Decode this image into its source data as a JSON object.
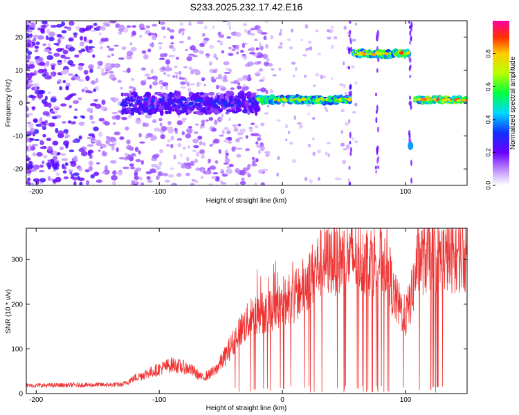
{
  "title": "S233.2025.232.17.42.E16",
  "chart_data": [
    {
      "type": "heatmap",
      "name": "spectrogram",
      "xlabel": "Height of straight line (km)",
      "ylabel": "Frequency (Hz)",
      "xlim": [
        -208,
        150
      ],
      "ylim": [
        -25,
        25
      ],
      "xticks": [
        -200,
        -100,
        0,
        100
      ],
      "yticks": [
        -20,
        -10,
        0,
        10,
        20
      ],
      "signal_tracks": [
        {
          "x_start": -130,
          "x_end": -20,
          "freq": 0,
          "spread": 6,
          "peak_amp": 0.35
        },
        {
          "x_start": -20,
          "x_end": 55,
          "freq": 1,
          "spread": 1.5,
          "peak_amp": 0.8
        },
        {
          "x_start": 58,
          "x_end": 103,
          "freq": 15,
          "spread": 1.5,
          "peak_amp": 0.9
        },
        {
          "x_start": 108,
          "x_end": 150,
          "freq": 1,
          "spread": 1.2,
          "peak_amp": 0.95
        }
      ],
      "colorbar": {
        "label": "Normalized spectral amplitude",
        "range": [
          0,
          1
        ],
        "ticks": [
          "0.0",
          "0.2",
          "0.4",
          "0.6",
          "0.8"
        ]
      }
    },
    {
      "type": "line",
      "name": "snr",
      "xlabel": "Height of straight line (km)",
      "ylabel": "SNR (10 * v/v)",
      "xlim": [
        -208,
        150
      ],
      "ylim": [
        0,
        370
      ],
      "xticks": [
        -200,
        -100,
        0,
        100
      ],
      "yticks": [
        0,
        100,
        200,
        300
      ],
      "color": "#ee3333",
      "trend": [
        {
          "x": -208,
          "y": 18
        },
        {
          "x": -130,
          "y": 20
        },
        {
          "x": -120,
          "y": 35
        },
        {
          "x": -110,
          "y": 45
        },
        {
          "x": -90,
          "y": 65
        },
        {
          "x": -75,
          "y": 55
        },
        {
          "x": -65,
          "y": 35
        },
        {
          "x": -55,
          "y": 50
        },
        {
          "x": -45,
          "y": 90
        },
        {
          "x": -35,
          "y": 140
        },
        {
          "x": -25,
          "y": 170
        },
        {
          "x": -10,
          "y": 190
        },
        {
          "x": 0,
          "y": 200
        },
        {
          "x": 10,
          "y": 215
        },
        {
          "x": 20,
          "y": 250
        },
        {
          "x": 30,
          "y": 290
        },
        {
          "x": 40,
          "y": 300
        },
        {
          "x": 55,
          "y": 305
        },
        {
          "x": 70,
          "y": 300
        },
        {
          "x": 85,
          "y": 300
        },
        {
          "x": 90,
          "y": 220
        },
        {
          "x": 100,
          "y": 170
        },
        {
          "x": 105,
          "y": 220
        },
        {
          "x": 110,
          "y": 300
        },
        {
          "x": 130,
          "y": 305
        },
        {
          "x": 150,
          "y": 310
        }
      ]
    }
  ]
}
